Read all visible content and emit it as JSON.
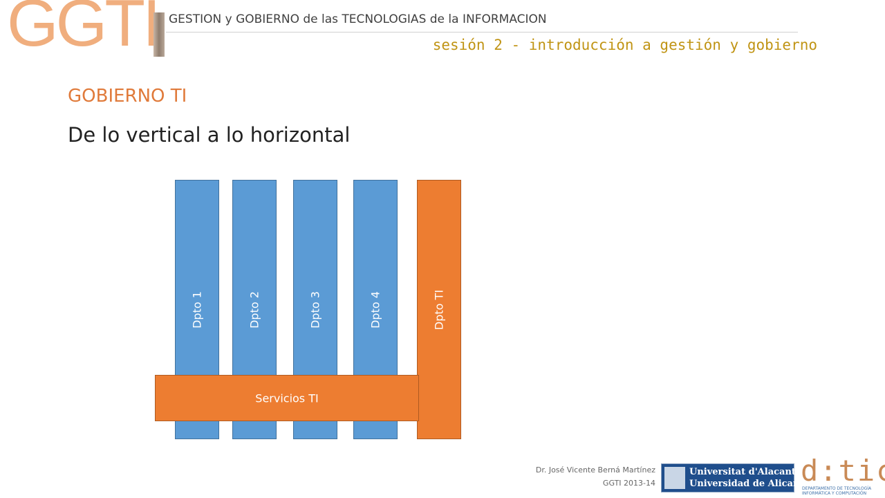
{
  "header": {
    "logo_text": "GGTI",
    "title": "GESTION y GOBIERNO de las TECNOLOGIAS de la INFORMACION",
    "session": "sesión 2 - introducción a gestión y gobierno"
  },
  "slide": {
    "section_title": "GOBIERNO TI",
    "subtitle": "De lo vertical a lo horizontal"
  },
  "diagram": {
    "columns": [
      "Dpto 1",
      "Dpto 2",
      "Dpto 3",
      "Dpto 4"
    ],
    "it_column": "Dpto TI",
    "bar_label": "Servicios TI",
    "colors": {
      "department": "#5b9bd5",
      "it": "#ed7d31"
    }
  },
  "footer": {
    "author": "Dr. José Vicente Berná Martínez",
    "course": "GGTI   2013-14",
    "ua_logo_line1": "Universitat d'Alacant",
    "ua_logo_line2": "Universidad de Alicante",
    "dtic_logo": "d:tic",
    "dtic_line1": "DEPARTAMENTO DE TECNOLOGÍA",
    "dtic_line2": "INFORMÁTICA Y COMPUTACIÓN"
  }
}
